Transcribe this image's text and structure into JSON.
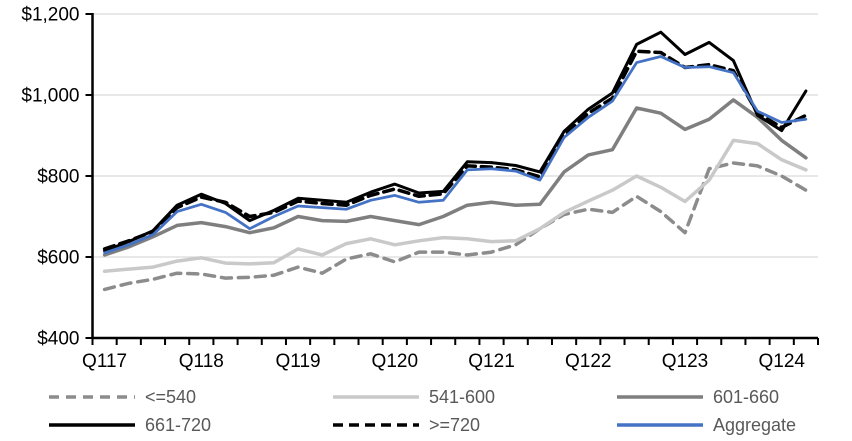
{
  "chart_data": {
    "type": "line",
    "title": "",
    "x_tick_labels": [
      "Q117",
      "Q118",
      "Q119",
      "Q120",
      "Q121",
      "Q122",
      "Q123",
      "Q124"
    ],
    "points_per_tick_label": 4,
    "n_points": 30,
    "y_tick_labels": [
      "$400",
      "$600",
      "$800",
      "$1,000",
      "$1,200"
    ],
    "y_tick_values": [
      400,
      600,
      800,
      1000,
      1200
    ],
    "ylim": [
      400,
      1200
    ],
    "grid": "horizontal",
    "gridline_color": "#D9D9D9",
    "axis_color": "#000000",
    "axis_label_color": "#000000",
    "legend_text_color": "#595959",
    "legend_position": "bottom-two-rows",
    "series": [
      {
        "name": "<=540",
        "color": "#8C8C8C",
        "dash": "10 7",
        "width": 3.5,
        "values": [
          520,
          535,
          545,
          560,
          558,
          548,
          550,
          555,
          575,
          560,
          595,
          608,
          588,
          612,
          612,
          605,
          612,
          630,
          670,
          705,
          718,
          710,
          750,
          712,
          660,
          818,
          832,
          825,
          800,
          765
        ]
      },
      {
        "name": "541-600",
        "color": "#C9C9C9",
        "dash": "",
        "width": 3.5,
        "values": [
          565,
          570,
          575,
          590,
          598,
          585,
          583,
          586,
          620,
          605,
          633,
          645,
          630,
          640,
          648,
          645,
          638,
          640,
          670,
          710,
          738,
          765,
          800,
          772,
          737,
          790,
          888,
          880,
          840,
          815
        ]
      },
      {
        "name": "601-660",
        "color": "#7F7F7F",
        "dash": "",
        "width": 3.5,
        "values": [
          605,
          625,
          650,
          678,
          685,
          675,
          660,
          672,
          700,
          690,
          688,
          700,
          690,
          680,
          700,
          728,
          735,
          728,
          730,
          810,
          852,
          865,
          968,
          955,
          915,
          940,
          988,
          945,
          888,
          845
        ]
      },
      {
        "name": "661-720",
        "color": "#000000",
        "dash": "",
        "width": 3,
        "values": [
          615,
          638,
          665,
          728,
          755,
          732,
          690,
          715,
          745,
          740,
          735,
          760,
          780,
          758,
          762,
          835,
          833,
          826,
          810,
          910,
          965,
          1005,
          1125,
          1155,
          1100,
          1130,
          1085,
          950,
          912,
          1010
        ]
      },
      {
        "name": ">=720",
        "color": "#000000",
        "dash": "10 6",
        "width": 3.5,
        "values": [
          620,
          640,
          663,
          722,
          748,
          735,
          700,
          710,
          738,
          732,
          728,
          752,
          768,
          750,
          756,
          825,
          822,
          815,
          798,
          900,
          955,
          992,
          1108,
          1105,
          1068,
          1075,
          1060,
          955,
          920,
          950
        ]
      },
      {
        "name": "Aggregate",
        "color": "#4472C4",
        "dash": "",
        "width": 2.75,
        "values": [
          610,
          630,
          655,
          712,
          730,
          710,
          670,
          700,
          726,
          722,
          718,
          740,
          752,
          735,
          740,
          815,
          818,
          812,
          790,
          895,
          945,
          985,
          1080,
          1095,
          1068,
          1070,
          1055,
          960,
          932,
          940
        ]
      }
    ]
  }
}
